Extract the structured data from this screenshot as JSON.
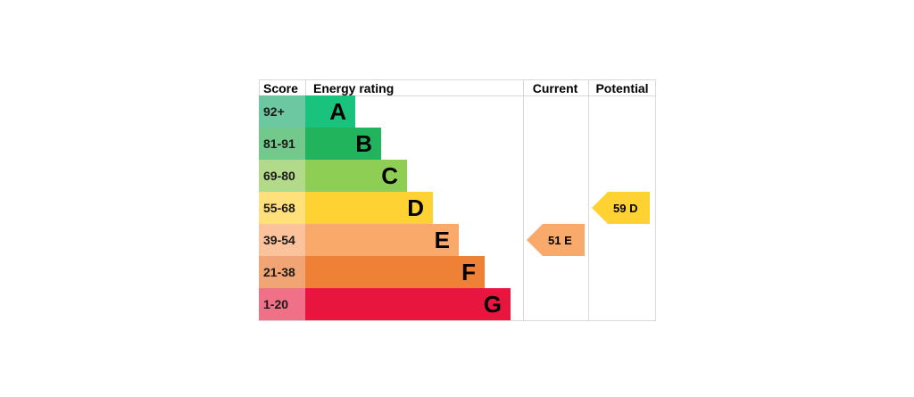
{
  "chart_data": {
    "type": "table",
    "headers": {
      "score": "Score",
      "rating": "Energy rating",
      "current": "Current",
      "potential": "Potential"
    },
    "bands": [
      {
        "score": "92+",
        "letter": "A",
        "color": "#19c37d",
        "score_bg": "#6cc8a0"
      },
      {
        "score": "81-91",
        "letter": "B",
        "color": "#22b45c",
        "score_bg": "#72c98b"
      },
      {
        "score": "69-80",
        "letter": "C",
        "color": "#8fce54",
        "score_bg": "#b2da8a"
      },
      {
        "score": "55-68",
        "letter": "D",
        "color": "#ffd233",
        "score_bg": "#ffe07a"
      },
      {
        "score": "39-54",
        "letter": "E",
        "color": "#f9aa6b",
        "score_bg": "#fbc29b"
      },
      {
        "score": "21-38",
        "letter": "F",
        "color": "#ee8135",
        "score_bg": "#f2a574"
      },
      {
        "score": "1-20",
        "letter": "G",
        "color": "#e8153f",
        "score_bg": "#f07088"
      }
    ],
    "current": {
      "value": 51,
      "band": "E",
      "label": "51 E",
      "color": "#f9aa6b"
    },
    "potential": {
      "value": 59,
      "band": "D",
      "label": "59 D",
      "color": "#ffd233"
    }
  }
}
